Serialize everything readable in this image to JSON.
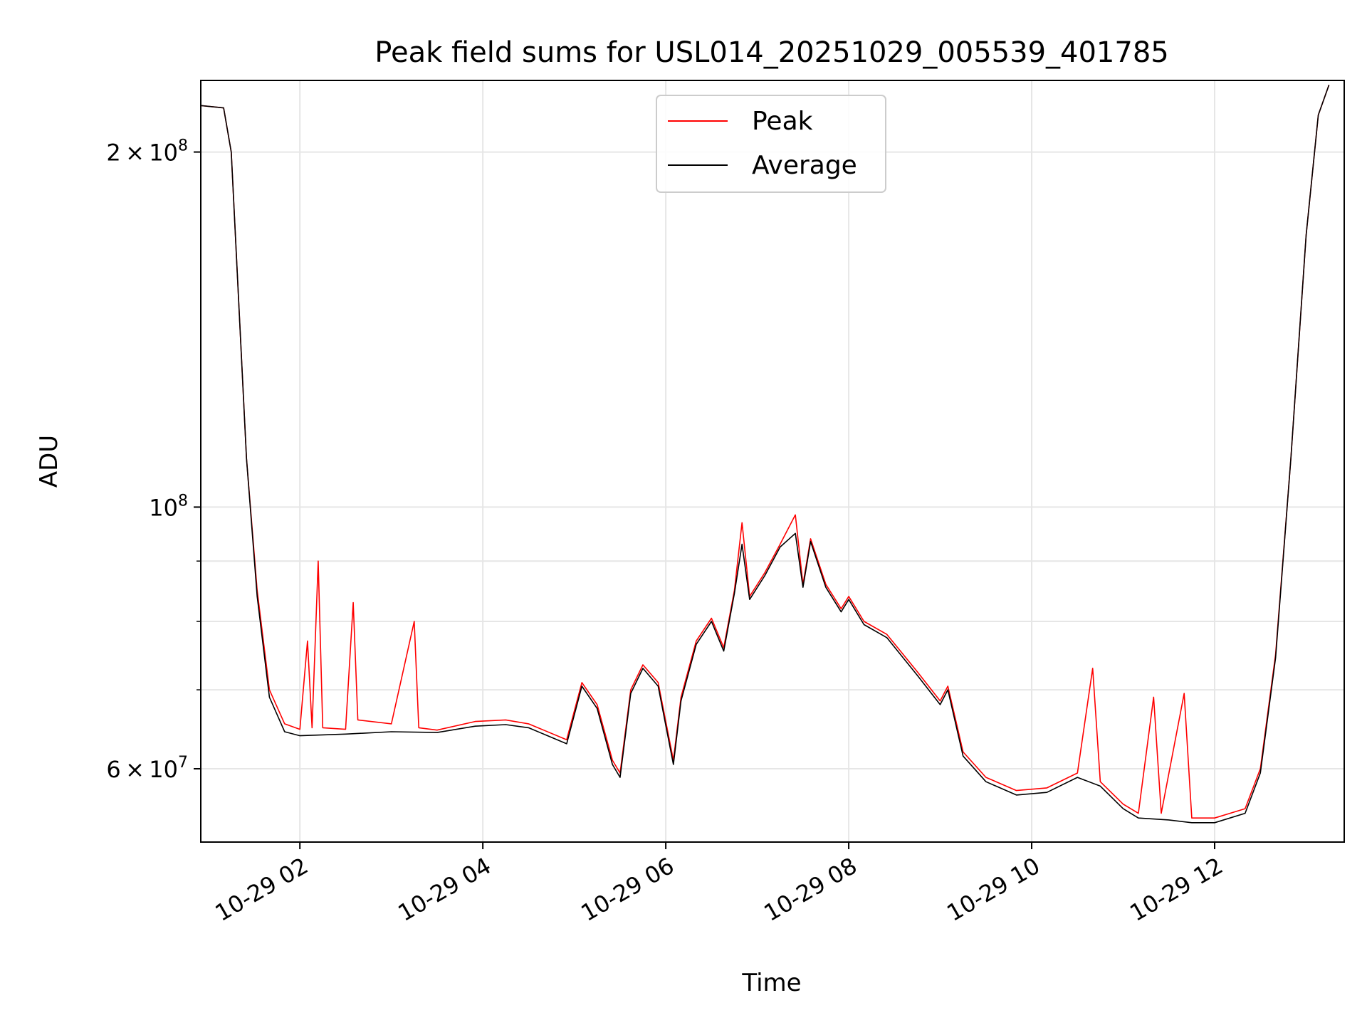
{
  "chart_data": {
    "type": "line",
    "title": "Peak field sums for USL014_20251029_005539_401785",
    "xlabel": "Time",
    "ylabel": "ADU",
    "y_scale": "log",
    "xlim": [
      "2025-10-29T00:55",
      "2025-10-29T13:25"
    ],
    "ylim": [
      52000000,
      230000000
    ],
    "grid": true,
    "legend_position": "upper center",
    "x_ticks": [
      {
        "t": "2025-10-29T02:00",
        "label": "10-29 02"
      },
      {
        "t": "2025-10-29T04:00",
        "label": "10-29 04"
      },
      {
        "t": "2025-10-29T06:00",
        "label": "10-29 06"
      },
      {
        "t": "2025-10-29T08:00",
        "label": "10-29 08"
      },
      {
        "t": "2025-10-29T10:00",
        "label": "10-29 10"
      },
      {
        "t": "2025-10-29T12:00",
        "label": "10-29 12"
      }
    ],
    "y_major_ticks": [
      {
        "v": 60000000,
        "mantissa": "6",
        "exponent": "7"
      },
      {
        "v": 100000000,
        "mantissa": "",
        "exponent": "8"
      },
      {
        "v": 200000000,
        "mantissa": "2",
        "exponent": "8"
      }
    ],
    "y_minor_ticks": [
      70000000,
      80000000,
      90000000
    ],
    "series": [
      {
        "name": "Peak",
        "color": "#ff0000",
        "points": [
          [
            "2025-10-29T00:55",
            219000000
          ],
          [
            "2025-10-29T01:10",
            218000000
          ],
          [
            "2025-10-29T01:15",
            200000000
          ],
          [
            "2025-10-29T01:25",
            110000000
          ],
          [
            "2025-10-29T01:32",
            85000000
          ],
          [
            "2025-10-29T01:40",
            70000000
          ],
          [
            "2025-10-29T01:50",
            65500000
          ],
          [
            "2025-10-29T02:00",
            64800000
          ],
          [
            "2025-10-29T02:05",
            77000000
          ],
          [
            "2025-10-29T02:08",
            65000000
          ],
          [
            "2025-10-29T02:12",
            90000000
          ],
          [
            "2025-10-29T02:15",
            65000000
          ],
          [
            "2025-10-29T02:30",
            64800000
          ],
          [
            "2025-10-29T02:35",
            83000000
          ],
          [
            "2025-10-29T02:38",
            66000000
          ],
          [
            "2025-10-29T03:00",
            65500000
          ],
          [
            "2025-10-29T03:15",
            80000000
          ],
          [
            "2025-10-29T03:18",
            65000000
          ],
          [
            "2025-10-29T03:30",
            64700000
          ],
          [
            "2025-10-29T03:55",
            65800000
          ],
          [
            "2025-10-29T04:15",
            66000000
          ],
          [
            "2025-10-29T04:30",
            65500000
          ],
          [
            "2025-10-29T04:55",
            63500000
          ],
          [
            "2025-10-29T05:05",
            71000000
          ],
          [
            "2025-10-29T05:15",
            68000000
          ],
          [
            "2025-10-29T05:25",
            61000000
          ],
          [
            "2025-10-29T05:30",
            59500000
          ],
          [
            "2025-10-29T05:37",
            70000000
          ],
          [
            "2025-10-29T05:45",
            73500000
          ],
          [
            "2025-10-29T05:55",
            71000000
          ],
          [
            "2025-10-29T06:05",
            61000000
          ],
          [
            "2025-10-29T06:10",
            69000000
          ],
          [
            "2025-10-29T06:20",
            77000000
          ],
          [
            "2025-10-29T06:30",
            80500000
          ],
          [
            "2025-10-29T06:38",
            76000000
          ],
          [
            "2025-10-29T06:45",
            85000000
          ],
          [
            "2025-10-29T06:50",
            97000000
          ],
          [
            "2025-10-29T06:55",
            84000000
          ],
          [
            "2025-10-29T07:05",
            88000000
          ],
          [
            "2025-10-29T07:15",
            93000000
          ],
          [
            "2025-10-29T07:25",
            98500000
          ],
          [
            "2025-10-29T07:30",
            86000000
          ],
          [
            "2025-10-29T07:35",
            94000000
          ],
          [
            "2025-10-29T07:45",
            86000000
          ],
          [
            "2025-10-29T07:55",
            82000000
          ],
          [
            "2025-10-29T08:00",
            84000000
          ],
          [
            "2025-10-29T08:10",
            80000000
          ],
          [
            "2025-10-29T08:25",
            78000000
          ],
          [
            "2025-10-29T08:45",
            72500000
          ],
          [
            "2025-10-29T09:00",
            68500000
          ],
          [
            "2025-10-29T09:05",
            70500000
          ],
          [
            "2025-10-29T09:15",
            62000000
          ],
          [
            "2025-10-29T09:30",
            59000000
          ],
          [
            "2025-10-29T09:50",
            57500000
          ],
          [
            "2025-10-29T10:10",
            57800000
          ],
          [
            "2025-10-29T10:30",
            59500000
          ],
          [
            "2025-10-29T10:40",
            73000000
          ],
          [
            "2025-10-29T10:45",
            58500000
          ],
          [
            "2025-10-29T11:00",
            56000000
          ],
          [
            "2025-10-29T11:10",
            55000000
          ],
          [
            "2025-10-29T11:20",
            69000000
          ],
          [
            "2025-10-29T11:25",
            55000000
          ],
          [
            "2025-10-29T11:40",
            69500000
          ],
          [
            "2025-10-29T11:45",
            54500000
          ],
          [
            "2025-10-29T12:00",
            54500000
          ],
          [
            "2025-10-29T12:20",
            55500000
          ],
          [
            "2025-10-29T12:30",
            60000000
          ],
          [
            "2025-10-29T12:40",
            75000000
          ],
          [
            "2025-10-29T12:50",
            110000000
          ],
          [
            "2025-10-29T13:00",
            170000000
          ],
          [
            "2025-10-29T13:08",
            215000000
          ],
          [
            "2025-10-29T13:15",
            228000000
          ]
        ]
      },
      {
        "name": "Average",
        "color": "#000000",
        "points": [
          [
            "2025-10-29T00:55",
            219000000
          ],
          [
            "2025-10-29T01:10",
            218000000
          ],
          [
            "2025-10-29T01:15",
            200000000
          ],
          [
            "2025-10-29T01:25",
            110000000
          ],
          [
            "2025-10-29T01:32",
            84000000
          ],
          [
            "2025-10-29T01:40",
            69000000
          ],
          [
            "2025-10-29T01:50",
            64500000
          ],
          [
            "2025-10-29T02:00",
            64000000
          ],
          [
            "2025-10-29T02:30",
            64200000
          ],
          [
            "2025-10-29T03:00",
            64500000
          ],
          [
            "2025-10-29T03:30",
            64400000
          ],
          [
            "2025-10-29T03:55",
            65200000
          ],
          [
            "2025-10-29T04:15",
            65400000
          ],
          [
            "2025-10-29T04:30",
            65000000
          ],
          [
            "2025-10-29T04:55",
            63000000
          ],
          [
            "2025-10-29T05:05",
            70500000
          ],
          [
            "2025-10-29T05:15",
            67500000
          ],
          [
            "2025-10-29T05:25",
            60500000
          ],
          [
            "2025-10-29T05:30",
            59000000
          ],
          [
            "2025-10-29T05:37",
            69500000
          ],
          [
            "2025-10-29T05:45",
            73000000
          ],
          [
            "2025-10-29T05:55",
            70500000
          ],
          [
            "2025-10-29T06:05",
            60500000
          ],
          [
            "2025-10-29T06:10",
            68500000
          ],
          [
            "2025-10-29T06:20",
            76500000
          ],
          [
            "2025-10-29T06:30",
            80000000
          ],
          [
            "2025-10-29T06:38",
            75500000
          ],
          [
            "2025-10-29T06:45",
            84500000
          ],
          [
            "2025-10-29T06:50",
            93000000
          ],
          [
            "2025-10-29T06:55",
            83500000
          ],
          [
            "2025-10-29T07:05",
            87500000
          ],
          [
            "2025-10-29T07:15",
            92500000
          ],
          [
            "2025-10-29T07:25",
            95000000
          ],
          [
            "2025-10-29T07:30",
            85500000
          ],
          [
            "2025-10-29T07:35",
            93500000
          ],
          [
            "2025-10-29T07:45",
            85500000
          ],
          [
            "2025-10-29T07:55",
            81500000
          ],
          [
            "2025-10-29T08:00",
            83500000
          ],
          [
            "2025-10-29T08:10",
            79500000
          ],
          [
            "2025-10-29T08:25",
            77500000
          ],
          [
            "2025-10-29T08:45",
            72000000
          ],
          [
            "2025-10-29T09:00",
            68000000
          ],
          [
            "2025-10-29T09:05",
            70000000
          ],
          [
            "2025-10-29T09:15",
            61500000
          ],
          [
            "2025-10-29T09:30",
            58500000
          ],
          [
            "2025-10-29T09:50",
            57000000
          ],
          [
            "2025-10-29T10:10",
            57300000
          ],
          [
            "2025-10-29T10:30",
            59000000
          ],
          [
            "2025-10-29T10:45",
            58000000
          ],
          [
            "2025-10-29T11:00",
            55500000
          ],
          [
            "2025-10-29T11:10",
            54500000
          ],
          [
            "2025-10-29T11:30",
            54300000
          ],
          [
            "2025-10-29T11:45",
            54000000
          ],
          [
            "2025-10-29T12:00",
            54000000
          ],
          [
            "2025-10-29T12:20",
            55000000
          ],
          [
            "2025-10-29T12:30",
            59500000
          ],
          [
            "2025-10-29T12:40",
            74500000
          ],
          [
            "2025-10-29T12:50",
            110000000
          ],
          [
            "2025-10-29T13:00",
            170000000
          ],
          [
            "2025-10-29T13:08",
            215000000
          ],
          [
            "2025-10-29T13:15",
            228000000
          ]
        ]
      }
    ]
  }
}
